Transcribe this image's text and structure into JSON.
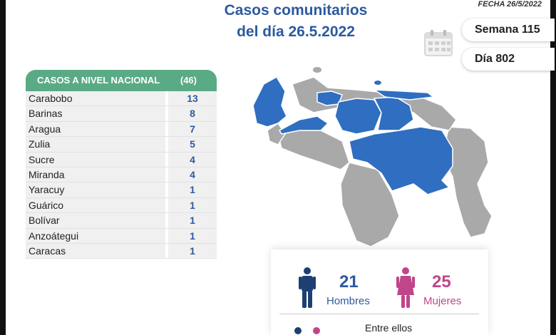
{
  "header": {
    "title_line1": "Casos comunitarios",
    "title_line2": "del día 26.5.2022",
    "fecha": "FECHA 26/5/2022",
    "semana": "Semana 115",
    "dia": "Día 802"
  },
  "table": {
    "header_label": "CASOS A NIVEL NACIONAL",
    "header_total": "(46)",
    "rows": [
      {
        "name": "Carabobo",
        "value": "13"
      },
      {
        "name": "Barinas",
        "value": "8"
      },
      {
        "name": "Aragua",
        "value": "7"
      },
      {
        "name": "Zulia",
        "value": "5"
      },
      {
        "name": "Sucre",
        "value": "4"
      },
      {
        "name": "Miranda",
        "value": "4"
      },
      {
        "name": "Yaracuy",
        "value": "1"
      },
      {
        "name": "Guárico",
        "value": "1"
      },
      {
        "name": "Bolívar",
        "value": "1"
      },
      {
        "name": "Anzoátegui",
        "value": "1"
      },
      {
        "name": "Caracas",
        "value": "1"
      }
    ]
  },
  "gender": {
    "men_count": "21",
    "men_label": "Hombres",
    "women_count": "25",
    "women_label": "Mujeres",
    "entre": "Entre ellos"
  },
  "colors": {
    "blue": "#2c5aa0",
    "green": "#5aaa86",
    "pink": "#c0458a",
    "map_blue": "#2f6ec0",
    "map_gray": "#a9a9a9"
  }
}
